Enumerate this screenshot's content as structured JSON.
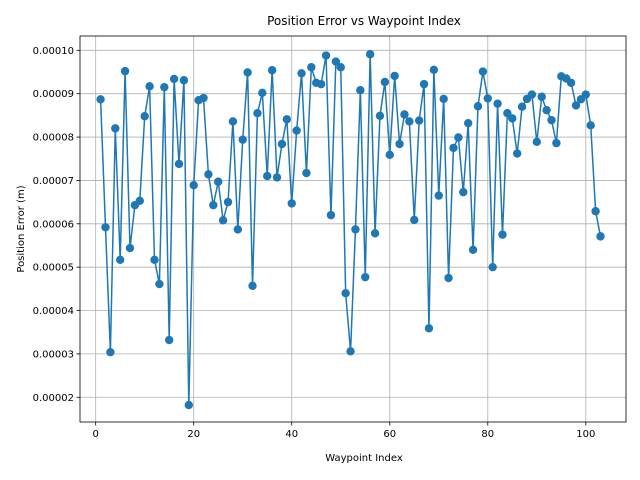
{
  "chart_data": {
    "type": "line",
    "title": "Position Error vs Waypoint Index",
    "xlabel": "Waypoint Index",
    "ylabel": "Position Error (m)",
    "xlim": [
      -3.2,
      108.2
    ],
    "ylim": [
      1.43e-05,
      0.0001033
    ],
    "grid": true,
    "x_ticks": [
      0,
      20,
      40,
      60,
      80,
      100
    ],
    "y_ticks": [
      2e-05,
      3e-05,
      4e-05,
      5e-05,
      6e-05,
      7e-05,
      8e-05,
      9e-05,
      0.0001
    ],
    "x_tick_labels": [
      "0",
      "20",
      "40",
      "60",
      "80",
      "100"
    ],
    "y_tick_labels": [
      "0.00002",
      "0.00003",
      "0.00004",
      "0.00005",
      "0.00006",
      "0.00007",
      "0.00008",
      "0.00009",
      "0.00010"
    ],
    "series_color": "#1f77b4",
    "marker": "circle",
    "series": [
      {
        "x": [
          1,
          2,
          3,
          4,
          5,
          6,
          7,
          8,
          9,
          10,
          11,
          12,
          13,
          14,
          15,
          16,
          17,
          18,
          19,
          20,
          21,
          22,
          23,
          24,
          25,
          26,
          27,
          28,
          29,
          30,
          31,
          32,
          33,
          34,
          35,
          36,
          37,
          38,
          39,
          40,
          41,
          42,
          43,
          44,
          45,
          46,
          47,
          48,
          49,
          50,
          51,
          52,
          53,
          54,
          55,
          56,
          57,
          58,
          59,
          60,
          61,
          62,
          63,
          64,
          65,
          66,
          67,
          68,
          69,
          70,
          71,
          72,
          73,
          74,
          75,
          76,
          77,
          78,
          79,
          80,
          81,
          82,
          83,
          84,
          85,
          86,
          87,
          88,
          89,
          90,
          91,
          92,
          93,
          94,
          95,
          96,
          97,
          98,
          99,
          100,
          101,
          102,
          103
        ],
        "y": [
          8.87e-05,
          5.92e-05,
          3.04e-05,
          8.2e-05,
          5.17e-05,
          9.52e-05,
          5.44e-05,
          6.43e-05,
          6.53e-05,
          8.48e-05,
          9.17e-05,
          5.17e-05,
          4.61e-05,
          9.15e-05,
          3.32e-05,
          9.34e-05,
          7.38e-05,
          9.31e-05,
          1.82e-05,
          6.89e-05,
          8.85e-05,
          8.9e-05,
          7.14e-05,
          6.43e-05,
          6.97e-05,
          6.08e-05,
          6.5e-05,
          8.36e-05,
          5.87e-05,
          7.94e-05,
          9.49e-05,
          4.57e-05,
          8.55e-05,
          9.02e-05,
          7.1e-05,
          9.54e-05,
          7.07e-05,
          7.84e-05,
          8.41e-05,
          6.47e-05,
          8.15e-05,
          9.47e-05,
          7.17e-05,
          9.61e-05,
          9.25e-05,
          9.22e-05,
          9.88e-05,
          6.2e-05,
          9.74e-05,
          9.61e-05,
          4.4e-05,
          3.06e-05,
          5.87e-05,
          9.08e-05,
          4.77e-05,
          9.91e-05,
          5.78e-05,
          8.49e-05,
          9.27e-05,
          7.59e-05,
          9.41e-05,
          7.84e-05,
          8.52e-05,
          8.36e-05,
          6.09e-05,
          8.38e-05,
          9.22e-05,
          3.59e-05,
          9.55e-05,
          6.65e-05,
          8.88e-05,
          4.75e-05,
          7.75e-05,
          7.99e-05,
          6.73e-05,
          8.32e-05,
          5.4e-05,
          8.71e-05,
          9.51e-05,
          8.89e-05,
          5e-05,
          8.77e-05,
          5.75e-05,
          8.55e-05,
          8.43e-05,
          7.62e-05,
          8.7e-05,
          8.88e-05,
          8.98e-05,
          7.89e-05,
          8.93e-05,
          8.62e-05,
          8.39e-05,
          7.86e-05,
          9.4e-05,
          9.35e-05,
          9.25e-05,
          8.73e-05,
          8.87e-05,
          8.98e-05,
          8.27e-05,
          6.29e-05,
          5.71e-05
        ]
      }
    ]
  }
}
